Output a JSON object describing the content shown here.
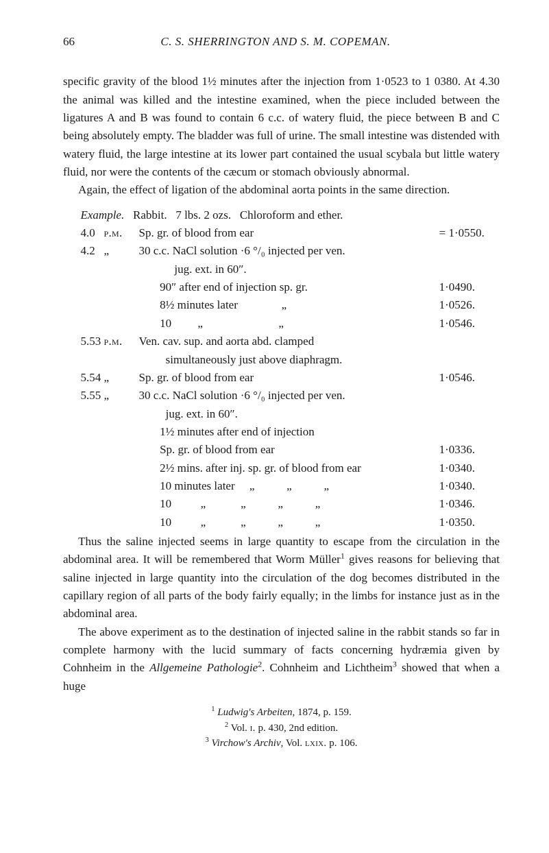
{
  "header": {
    "page_number": "66",
    "running_head_prefix": "C. S. SHERRINGTON AND S. M. COPEMAN."
  },
  "para1": "specific gravity of the blood 1½ minutes after the injection from 1·0523 to 1 0380. At 4.30 the animal was killed and the intestine examined, when the piece included between the ligatures A and B was found to contain 6 c.c. of watery fluid, the piece between B and C being abso­lutely empty. The bladder was full of urine. The small intestine was distended with watery fluid, the large intestine at its lower part contained the usual scybala but little watery fluid, nor were the contents of the cæcum or stomach obviously abnormal.",
  "para2": "Again, the effect of ligation of the abdominal aorta points in the same direction.",
  "example": {
    "title_lead": "Example.",
    "title_rest": "   Rabbit.   7 lbs. 2 ozs.   Chloroform and ether.",
    "rows": [
      {
        "time": "4.0   ",
        "sc": "p.m.",
        "desc": "Sp. gr. of blood from ear",
        "val": "= 1·0550."
      },
      {
        "time": "4.2   ",
        "sc": "„",
        "desc": "30 c.c. NaCl solution ·6 °/₀ injected per ven.",
        "val": ""
      },
      {
        "time": "",
        "sc": "",
        "desc_cont": "     jug. ext. in 60″.",
        "val": ""
      },
      {
        "time": "",
        "sc": "",
        "desc_cont": "90″ after end of injection sp. gr.",
        "val": "1·0490."
      },
      {
        "time": "",
        "sc": "",
        "desc_cont": "8½ minutes later               „",
        "val": "1·0526."
      },
      {
        "time": "",
        "sc": "",
        "desc_cont": "10         „                          „",
        "val": "1·0546."
      },
      {
        "time": "5.53 ",
        "sc": "p.m.",
        "desc": "Ven. cav. sup. and aorta abd. clamped",
        "val": ""
      },
      {
        "time": "",
        "sc": "",
        "desc_cont": "  simultaneously just above diaphragm.",
        "val": ""
      },
      {
        "time": "5.54 ",
        "sc": "„",
        "desc": "Sp. gr. of blood from ear",
        "val": "1·0546."
      },
      {
        "time": "5.55 ",
        "sc": "„",
        "desc": "30 c.c. NaCl solution ·6 °/₀ injected per ven.",
        "val": ""
      },
      {
        "time": "",
        "sc": "",
        "desc_cont": "  jug. ext. in 60″.",
        "val": ""
      },
      {
        "time": "",
        "sc": "",
        "desc_cont": "1½ minutes after end of injection",
        "val": ""
      },
      {
        "time": "",
        "sc": "",
        "desc_cont": "Sp. gr. of blood from ear",
        "val": "1·0336."
      },
      {
        "time": "",
        "sc": "",
        "desc_cont": "2½ mins. after inj. sp. gr. of blood from ear",
        "val": "1·0340."
      },
      {
        "time": "",
        "sc": "",
        "desc_cont": "10 minutes later     „           „           „",
        "val": "1·0340."
      },
      {
        "time": "",
        "sc": "",
        "desc_cont": "10          „            „           „           „",
        "val": "1·0346."
      },
      {
        "time": "",
        "sc": "",
        "desc_cont": "10          „            „           „           „",
        "val": "1·0350."
      }
    ]
  },
  "para3_a": "Thus the saline injected seems in large quantity to escape from the circulation in the abdominal area. It will be remembered that Worm Müller",
  "para3_sup1": "1",
  "para3_b": " gives reasons for believing that saline injected in large quantity into the circulation of the dog becomes distributed in the capillary region of all parts of the body fairly equally; in the limbs for instance just as in the abdominal area.",
  "para4_a": "The above experiment as to the destination of injected saline in the rabbit stands so far in complete harmony with the lucid summary of facts concerning hydræmia given by Cohnheim in the ",
  "para4_i1": "Allgemeine Pathologie",
  "para4_sup2": "2",
  "para4_b": ". Cohnheim and Lichtheim",
  "para4_sup3": "3",
  "para4_c": " showed that when a huge",
  "footnotes": {
    "f1_sup": "1",
    "f1_a": " ",
    "f1_i": "Ludwig's Arbeiten",
    "f1_b": ", 1874, p. 159.",
    "f2_sup": "2",
    "f2_a": " Vol. ",
    "f2_sc": "i.",
    "f2_b": " p. 430, 2nd edition.",
    "f3_sup": "3",
    "f3_a": " ",
    "f3_i": "Virchow's Archiv",
    "f3_b": ", Vol. ",
    "f3_sc": "lxix.",
    "f3_c": " p. 106."
  }
}
